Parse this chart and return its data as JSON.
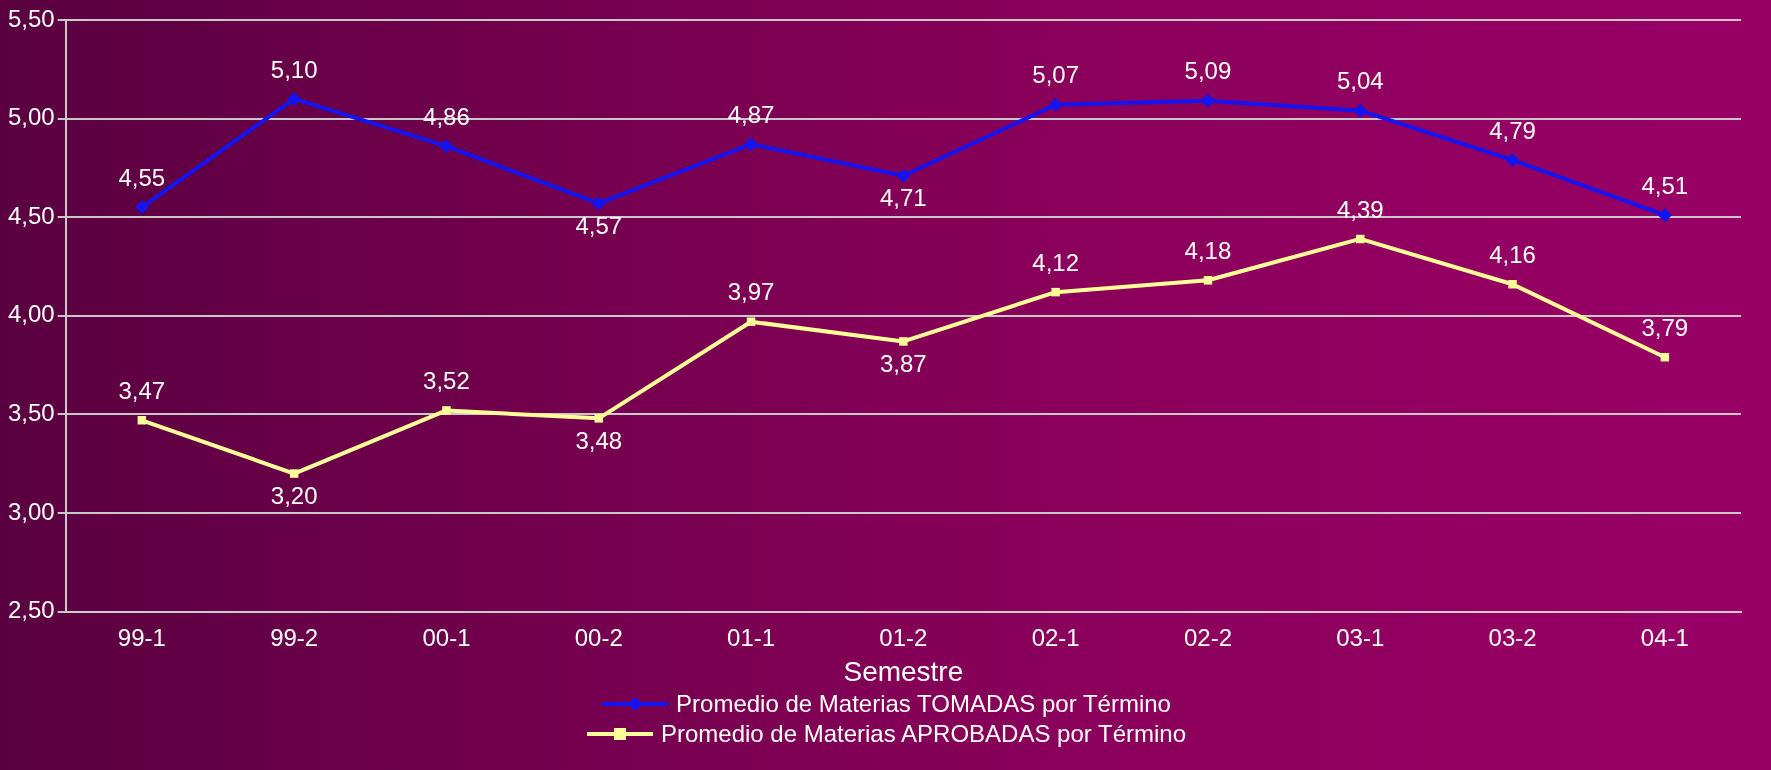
{
  "chart_data": {
    "type": "line",
    "xlabel": "Semestre",
    "categories": [
      "99-1",
      "99-2",
      "00-1",
      "00-2",
      "01-1",
      "01-2",
      "02-1",
      "02-2",
      "03-1",
      "03-2",
      "04-1"
    ],
    "series": [
      {
        "name": "Promedio de Materias TOMADAS por Término",
        "color": "#1414f0",
        "marker": "diamond",
        "values": [
          4.55,
          5.1,
          4.86,
          4.57,
          4.87,
          4.71,
          5.07,
          5.09,
          5.04,
          4.79,
          4.51
        ],
        "value_labels": [
          "4,55",
          "5,10",
          "4,86",
          "4,57",
          "4,87",
          "4,71",
          "5,07",
          "5,09",
          "5,04",
          "4,79",
          "4,51"
        ]
      },
      {
        "name": "Promedio de Materias APROBADAS por Término",
        "color": "#ffff99",
        "marker": "square",
        "values": [
          3.47,
          3.2,
          3.52,
          3.48,
          3.97,
          3.87,
          4.12,
          4.18,
          4.39,
          4.16,
          3.79
        ],
        "value_labels": [
          "3,47",
          "3,20",
          "3,52",
          "3,48",
          "3,97",
          "3,87",
          "4,12",
          "4,18",
          "4,39",
          "4,16",
          "3,79"
        ]
      }
    ],
    "ylim": [
      2.5,
      5.5
    ],
    "yticks": [
      {
        "value": 2.5,
        "label": "2,50"
      },
      {
        "value": 3,
        "label": "3,00"
      },
      {
        "value": 3.5,
        "label": "3,50"
      },
      {
        "value": 4,
        "label": "4,00"
      },
      {
        "value": 4.5,
        "label": "4,50"
      },
      {
        "value": 5,
        "label": "5,00"
      },
      {
        "value": 5.5,
        "label": "5,50"
      }
    ],
    "grid": "y",
    "legend": "bottom",
    "line_style": "solid"
  }
}
